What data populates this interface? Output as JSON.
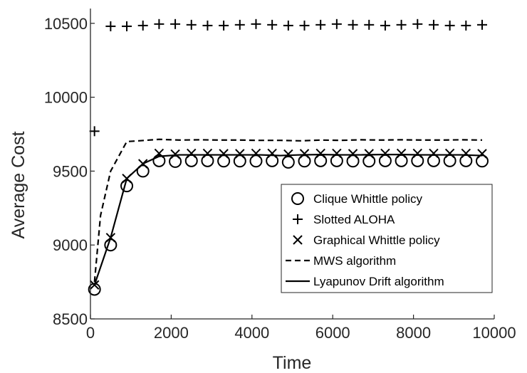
{
  "chart_data": {
    "type": "line",
    "title": "",
    "xlabel": "Time",
    "ylabel": "Average Cost",
    "xlim": [
      0,
      10000
    ],
    "ylim": [
      8500,
      10600
    ],
    "xticks": [
      0,
      2000,
      4000,
      6000,
      8000,
      10000
    ],
    "yticks": [
      8500,
      9000,
      9500,
      10000,
      10500
    ],
    "xtick_labels": [
      "0",
      "2000",
      "4000",
      "6000",
      "8000",
      "10000"
    ],
    "ytick_labels": [
      "8500",
      "9000",
      "9500",
      "10000",
      "10500"
    ],
    "grid": false,
    "legend_position": "bottom-right",
    "x": [
      100,
      500,
      900,
      1300,
      1700,
      2100,
      2500,
      2900,
      3300,
      3700,
      4100,
      4500,
      4900,
      5300,
      5700,
      6100,
      6500,
      6900,
      7300,
      7700,
      8100,
      8500,
      8900,
      9300,
      9700
    ],
    "series": [
      {
        "name": "Clique Whittle policy",
        "style": "marker-circle",
        "values": [
          8700,
          9000,
          9400,
          9500,
          9570,
          9565,
          9570,
          9570,
          9568,
          9568,
          9568,
          9570,
          9560,
          9568,
          9570,
          9570,
          9568,
          9568,
          9570,
          9570,
          9570,
          9570,
          9570,
          9570,
          9568
        ]
      },
      {
        "name": "Slotted ALOHA",
        "style": "marker-plus",
        "values": [
          9770,
          10480,
          10480,
          10485,
          10495,
          10495,
          10490,
          10485,
          10485,
          10490,
          10495,
          10490,
          10485,
          10485,
          10490,
          10495,
          10490,
          10490,
          10485,
          10490,
          10495,
          10490,
          10485,
          10485,
          10490
        ]
      },
      {
        "name": "Graphical Whittle policy",
        "style": "marker-x",
        "values": [
          8730,
          9050,
          9450,
          9550,
          9620,
          9615,
          9620,
          9620,
          9618,
          9618,
          9620,
          9620,
          9615,
          9618,
          9620,
          9620,
          9618,
          9618,
          9620,
          9620,
          9620,
          9620,
          9620,
          9620,
          9618
        ]
      },
      {
        "name": "MWS algorithm",
        "style": "dashed",
        "x": [
          100,
          250,
          500,
          700,
          900,
          1200,
          1700,
          2200,
          2700,
          3200,
          3700,
          4200,
          4700,
          5200,
          5700,
          6200,
          6700,
          7200,
          7700,
          8200,
          8700,
          9200,
          9700
        ],
        "values": [
          8750,
          9200,
          9500,
          9600,
          9700,
          9705,
          9715,
          9710,
          9712,
          9710,
          9710,
          9708,
          9708,
          9705,
          9710,
          9708,
          9712,
          9710,
          9712,
          9710,
          9710,
          9712,
          9710
        ]
      },
      {
        "name": "Lyapunov Drift algorithm",
        "style": "solid",
        "x": [
          100,
          500,
          900,
          1300,
          1700,
          2200,
          2700,
          3200,
          3700,
          4200,
          4700,
          5200,
          5700,
          6200,
          6700,
          7200,
          7700,
          8200,
          8700,
          9200,
          9700
        ],
        "values": [
          8730,
          9050,
          9450,
          9550,
          9600,
          9610,
          9610,
          9610,
          9610,
          9610,
          9605,
          9610,
          9612,
          9610,
          9610,
          9612,
          9612,
          9610,
          9610,
          9610,
          9605
        ]
      }
    ]
  }
}
